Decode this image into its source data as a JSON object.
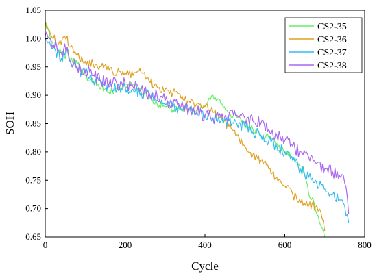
{
  "chart_data": {
    "type": "line",
    "xlabel": "Cycle",
    "ylabel": "SOH",
    "xlim": [
      0,
      800
    ],
    "ylim": [
      0.65,
      1.05
    ],
    "xticks": [
      0,
      200,
      400,
      600,
      800
    ],
    "xtick_labels": [
      "0",
      "200",
      "400",
      "600",
      "800"
    ],
    "yticks": [
      0.65,
      0.7,
      0.75,
      0.8,
      0.85,
      0.9,
      0.95,
      1.0,
      1.05
    ],
    "ytick_labels": [
      "0.65",
      "0.70",
      "0.75",
      "0.80",
      "0.85",
      "0.90",
      "0.95",
      "1.00",
      "1.05"
    ],
    "grid": false,
    "legend_position": "top-right",
    "series": [
      {
        "name": "CS2-35",
        "color": "#66ee66",
        "points": [
          [
            0,
            1.03
          ],
          [
            10,
            1.01
          ],
          [
            20,
            0.99
          ],
          [
            40,
            0.975
          ],
          [
            50,
            0.965
          ],
          [
            55,
            0.985
          ],
          [
            60,
            0.965
          ],
          [
            80,
            0.955
          ],
          [
            100,
            0.935
          ],
          [
            120,
            0.925
          ],
          [
            140,
            0.915
          ],
          [
            160,
            0.905
          ],
          [
            180,
            0.91
          ],
          [
            200,
            0.915
          ],
          [
            220,
            0.92
          ],
          [
            240,
            0.905
          ],
          [
            260,
            0.895
          ],
          [
            280,
            0.885
          ],
          [
            300,
            0.88
          ],
          [
            320,
            0.875
          ],
          [
            340,
            0.875
          ],
          [
            360,
            0.875
          ],
          [
            380,
            0.875
          ],
          [
            400,
            0.88
          ],
          [
            410,
            0.895
          ],
          [
            420,
            0.9
          ],
          [
            440,
            0.885
          ],
          [
            460,
            0.87
          ],
          [
            480,
            0.86
          ],
          [
            500,
            0.85
          ],
          [
            520,
            0.84
          ],
          [
            540,
            0.83
          ],
          [
            560,
            0.825
          ],
          [
            580,
            0.815
          ],
          [
            600,
            0.8
          ],
          [
            620,
            0.79
          ],
          [
            640,
            0.775
          ],
          [
            650,
            0.76
          ],
          [
            660,
            0.725
          ],
          [
            670,
            0.72
          ],
          [
            680,
            0.69
          ],
          [
            690,
            0.67
          ],
          [
            700,
            0.65
          ]
        ]
      },
      {
        "name": "CS2-36",
        "color": "#e0a020",
        "points": [
          [
            0,
            1.03
          ],
          [
            10,
            1.015
          ],
          [
            20,
            1.0
          ],
          [
            40,
            0.99
          ],
          [
            55,
            1.005
          ],
          [
            60,
            0.985
          ],
          [
            80,
            0.97
          ],
          [
            100,
            0.96
          ],
          [
            120,
            0.955
          ],
          [
            140,
            0.95
          ],
          [
            160,
            0.945
          ],
          [
            180,
            0.94
          ],
          [
            200,
            0.94
          ],
          [
            220,
            0.935
          ],
          [
            240,
            0.94
          ],
          [
            260,
            0.925
          ],
          [
            280,
            0.915
          ],
          [
            300,
            0.91
          ],
          [
            320,
            0.905
          ],
          [
            340,
            0.895
          ],
          [
            360,
            0.89
          ],
          [
            380,
            0.885
          ],
          [
            400,
            0.88
          ],
          [
            420,
            0.87
          ],
          [
            440,
            0.86
          ],
          [
            460,
            0.845
          ],
          [
            480,
            0.83
          ],
          [
            500,
            0.81
          ],
          [
            520,
            0.795
          ],
          [
            540,
            0.785
          ],
          [
            560,
            0.77
          ],
          [
            580,
            0.755
          ],
          [
            600,
            0.74
          ],
          [
            620,
            0.725
          ],
          [
            640,
            0.71
          ],
          [
            660,
            0.705
          ],
          [
            680,
            0.705
          ],
          [
            690,
            0.695
          ],
          [
            700,
            0.66
          ]
        ]
      },
      {
        "name": "CS2-37",
        "color": "#33bbee",
        "points": [
          [
            0,
            1.0
          ],
          [
            10,
            0.995
          ],
          [
            20,
            0.985
          ],
          [
            40,
            0.965
          ],
          [
            55,
            0.98
          ],
          [
            60,
            0.96
          ],
          [
            80,
            0.945
          ],
          [
            100,
            0.94
          ],
          [
            120,
            0.925
          ],
          [
            140,
            0.92
          ],
          [
            160,
            0.915
          ],
          [
            180,
            0.91
          ],
          [
            200,
            0.915
          ],
          [
            220,
            0.91
          ],
          [
            240,
            0.905
          ],
          [
            260,
            0.9
          ],
          [
            280,
            0.89
          ],
          [
            300,
            0.885
          ],
          [
            320,
            0.88
          ],
          [
            340,
            0.875
          ],
          [
            360,
            0.875
          ],
          [
            380,
            0.87
          ],
          [
            400,
            0.865
          ],
          [
            420,
            0.86
          ],
          [
            440,
            0.855
          ],
          [
            460,
            0.855
          ],
          [
            480,
            0.85
          ],
          [
            500,
            0.845
          ],
          [
            520,
            0.835
          ],
          [
            540,
            0.83
          ],
          [
            560,
            0.82
          ],
          [
            580,
            0.81
          ],
          [
            600,
            0.8
          ],
          [
            620,
            0.785
          ],
          [
            640,
            0.77
          ],
          [
            660,
            0.755
          ],
          [
            680,
            0.745
          ],
          [
            700,
            0.735
          ],
          [
            720,
            0.725
          ],
          [
            740,
            0.715
          ],
          [
            750,
            0.705
          ],
          [
            760,
            0.675
          ]
        ]
      },
      {
        "name": "CS2-38",
        "color": "#aa66ee",
        "points": [
          [
            0,
            1.005
          ],
          [
            10,
            1.0
          ],
          [
            20,
            0.99
          ],
          [
            40,
            0.975
          ],
          [
            55,
            0.985
          ],
          [
            60,
            0.965
          ],
          [
            80,
            0.95
          ],
          [
            100,
            0.945
          ],
          [
            120,
            0.935
          ],
          [
            140,
            0.925
          ],
          [
            160,
            0.92
          ],
          [
            180,
            0.92
          ],
          [
            200,
            0.92
          ],
          [
            220,
            0.915
          ],
          [
            240,
            0.91
          ],
          [
            260,
            0.905
          ],
          [
            280,
            0.9
          ],
          [
            300,
            0.89
          ],
          [
            320,
            0.885
          ],
          [
            340,
            0.88
          ],
          [
            360,
            0.875
          ],
          [
            380,
            0.87
          ],
          [
            400,
            0.865
          ],
          [
            420,
            0.86
          ],
          [
            440,
            0.86
          ],
          [
            460,
            0.865
          ],
          [
            480,
            0.865
          ],
          [
            500,
            0.86
          ],
          [
            520,
            0.855
          ],
          [
            540,
            0.85
          ],
          [
            560,
            0.84
          ],
          [
            580,
            0.83
          ],
          [
            600,
            0.82
          ],
          [
            620,
            0.81
          ],
          [
            640,
            0.8
          ],
          [
            660,
            0.79
          ],
          [
            680,
            0.78
          ],
          [
            700,
            0.77
          ],
          [
            720,
            0.765
          ],
          [
            740,
            0.755
          ],
          [
            750,
            0.745
          ],
          [
            760,
            0.69
          ]
        ]
      }
    ]
  }
}
